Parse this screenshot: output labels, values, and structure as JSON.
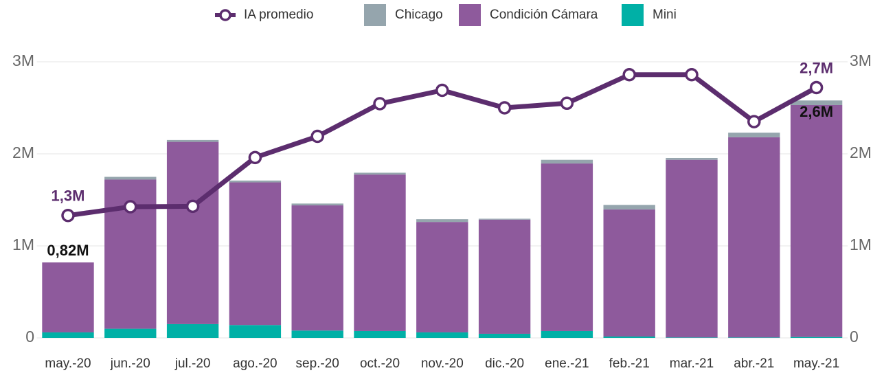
{
  "chart_data": {
    "type": "bar",
    "stacked": true,
    "categories": [
      "may.-20",
      "jun.-20",
      "jul.-20",
      "ago.-20",
      "sep.-20",
      "oct.-20",
      "nov.-20",
      "dic.-20",
      "ene.-21",
      "feb.-21",
      "mar.-21",
      "abr.-21",
      "may.-21"
    ],
    "series": [
      {
        "name": "IA promedio",
        "type": "line",
        "axis": "y2",
        "color": "#5c2d6e",
        "values": [
          1330000,
          1425000,
          1430000,
          1960000,
          2190000,
          2545000,
          2690000,
          2500000,
          2550000,
          2860000,
          2860000,
          2350000,
          2720000
        ]
      },
      {
        "name": "Chicago",
        "color": "#95a5ad",
        "values": [
          0,
          30000,
          20000,
          20000,
          20000,
          20000,
          30000,
          10000,
          40000,
          50000,
          20000,
          50000,
          50000
        ]
      },
      {
        "name": "Condición Cámara",
        "color": "#8e5a9c",
        "values": [
          760000,
          1620000,
          1980000,
          1550000,
          1360000,
          1700000,
          1200000,
          1240000,
          1820000,
          1380000,
          1930000,
          2175000,
          2520000
        ]
      },
      {
        "name": "Mini",
        "color": "#00b0a6",
        "values": [
          60000,
          100000,
          150000,
          140000,
          80000,
          75000,
          60000,
          45000,
          75000,
          15000,
          5000,
          5000,
          10000
        ]
      }
    ],
    "ylim": [
      0,
      3000000
    ],
    "yticks": [
      0,
      {
        "value": 1000000,
        "label": "1M"
      },
      {
        "value": 2000000,
        "label": "2M"
      },
      {
        "value": 3000000,
        "label": "3M"
      }
    ],
    "y2lim": [
      0,
      3000000
    ],
    "y2ticks": [
      0,
      {
        "value": 1000000,
        "label": "1M"
      },
      {
        "value": 2000000,
        "label": "2M"
      },
      {
        "value": 3000000,
        "label": "3M"
      }
    ],
    "grid": true,
    "legend": "top",
    "annotations": [
      {
        "category": "may.-20",
        "value": 820000,
        "label": "0,82M"
      },
      {
        "category": "may.-20",
        "series": "IA promedio",
        "value": 1330000,
        "label": "1,3M"
      },
      {
        "category": "may.-21",
        "series": "IA promedio",
        "value": 2720000,
        "label": "2,7M"
      },
      {
        "category": "may.-21",
        "value": 2580000,
        "label": "2,6M"
      }
    ]
  }
}
